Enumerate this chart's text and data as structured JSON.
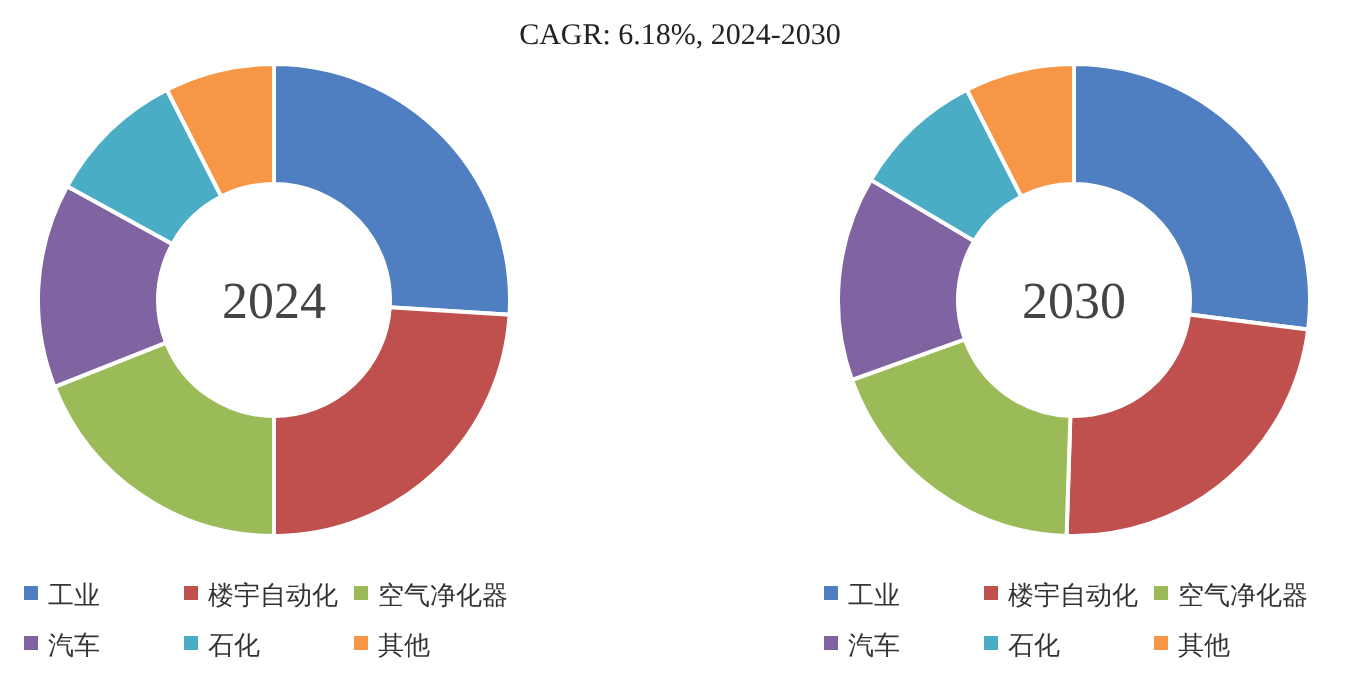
{
  "chart_data": [
    {
      "type": "donut",
      "title": "2024",
      "annotations": [
        "CAGR: 6.18%, 2024-2030"
      ],
      "categories": [
        "工业",
        "楼宇自动化",
        "空气净化器",
        "汽车",
        "石化",
        "其他"
      ],
      "values": [
        26,
        24,
        19,
        14,
        9.5,
        7.5
      ],
      "colors": [
        "#4f7fc0",
        "#c0504d",
        "#9bbb59",
        "#8064a2",
        "#4bacc6",
        "#f79646"
      ],
      "legend": "bottom"
    },
    {
      "type": "donut",
      "title": "2030",
      "categories": [
        "工业",
        "楼宇自动化",
        "空气净化器",
        "汽车",
        "石化",
        "其他"
      ],
      "values": [
        27,
        23.5,
        19,
        14,
        9,
        7.5
      ],
      "colors": [
        "#4f7fc0",
        "#c0504d",
        "#9bbb59",
        "#8064a2",
        "#4bacc6",
        "#f79646"
      ],
      "legend": "bottom"
    }
  ]
}
